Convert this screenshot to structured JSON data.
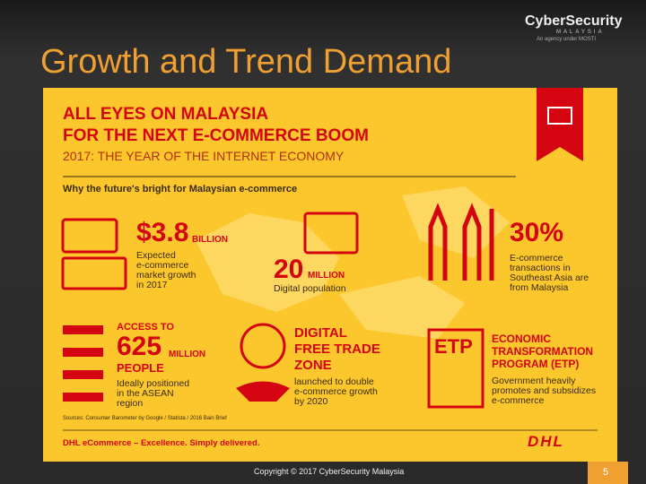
{
  "header": {
    "logo": "CyberSecurity",
    "logo_sub": "MALAYSIA",
    "tagline": "An agency under MOSTI",
    "title": "Growth and Trend Demand"
  },
  "infographic": {
    "headline": [
      "ALL EYES ON MALAYSIA",
      "FOR THE NEXT E-COMMERCE BOOM"
    ],
    "subheadline": "2017: THE YEAR OF THE INTERNET ECONOMY",
    "intro": "Why the future's bright for Malaysian e-commerce",
    "market": {
      "big": "$3.8",
      "unit": "BILLION",
      "desc": [
        "Expected",
        "e-commerce",
        "market growth",
        "in 2017"
      ]
    },
    "population": {
      "big": "20",
      "unit": "MILLION",
      "desc": "Digital population"
    },
    "share": {
      "big": "30%",
      "desc": [
        "E-commerce",
        "transactions in",
        "Southeast Asia are",
        "from Malaysia"
      ]
    },
    "access": {
      "pre": "ACCESS TO",
      "big": "625",
      "unit": "MILLION",
      "post": "PEOPLE",
      "desc": [
        "Ideally positioned",
        "in the ASEAN",
        "region"
      ]
    },
    "zone": {
      "title": [
        "DIGITAL",
        "FREE TRADE",
        "ZONE"
      ],
      "desc": [
        "launched to double",
        "e-commerce growth",
        "by 2020"
      ]
    },
    "etp": {
      "icon": "ETP",
      "title": [
        "ECONOMIC",
        "TRANSFORMATION",
        "PROGRAM (ETP)"
      ],
      "desc": [
        "Government heavily",
        "promotes and subsidizes",
        "e-commerce"
      ]
    },
    "sources": "Sources: Consumer Barometer by Google / Statista / 2016 Bain Brief",
    "slogan": "DHL eCommerce – Excellence. Simply delivered.",
    "brand": "DHL"
  },
  "footer": {
    "copyright": "Copyright © 2017 CyberSecurity Malaysia",
    "page": "5"
  }
}
